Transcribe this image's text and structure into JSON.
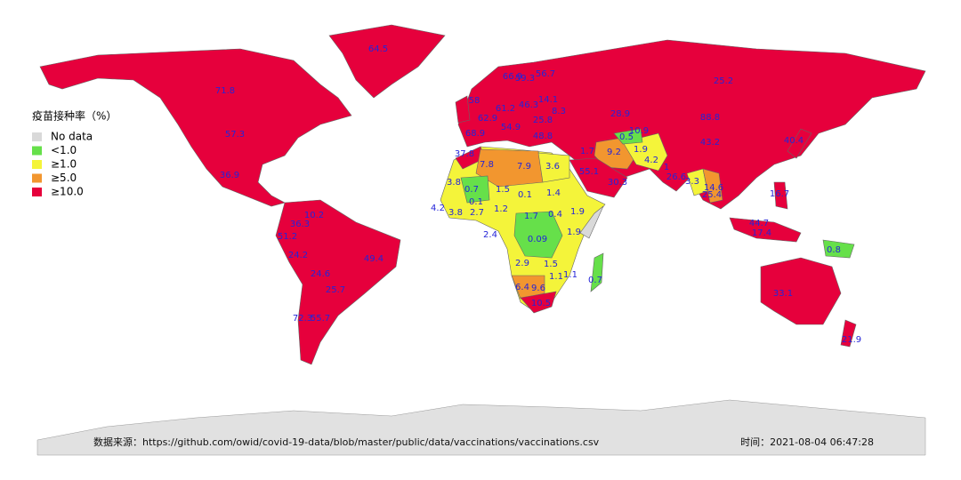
{
  "map": {
    "legend": {
      "title": "疫苗接种率（%）",
      "items": [
        {
          "label": "No data",
          "color": "#d9d9d9"
        },
        {
          "label": "<1.0",
          "color": "#66e04a"
        },
        {
          "label": "≥1.0",
          "color": "#f4f43a"
        },
        {
          "label": "≥5.0",
          "color": "#f2962f"
        },
        {
          "label": "≥10.0",
          "color": "#e6003c"
        }
      ]
    },
    "labels": [
      64.5,
      71.8,
      57.3,
      36.9,
      10.2,
      36.3,
      51.2,
      24.2,
      49.4,
      24.6,
      25.7,
      72.3,
      55.7,
      58,
      66.9,
      59.3,
      56.7,
      61.2,
      46.3,
      14.1,
      62.9,
      25.8,
      8.3,
      68.9,
      54.9,
      48.8,
      37.8,
      28.9,
      88.8,
      25.2,
      43.2,
      40.4,
      1.7,
      0.5,
      10.9,
      1.9,
      4.2,
      1,
      9.2,
      55.1,
      30.3,
      26.6,
      7.8,
      7.9,
      3.6,
      3.8,
      0.7,
      1.5,
      0.1,
      1.4,
      0.1,
      1.2,
      1.7,
      0.4,
      1.9,
      4.2,
      3.8,
      2.7,
      2.4,
      0.09,
      1.9,
      2.9,
      1.5,
      0.7,
      1.1,
      1.1,
      6.4,
      9.6,
      10.5,
      3.3,
      14.6,
      25.4,
      16.7,
      44.7,
      17.4,
      0.8,
      33.1,
      21.9
    ],
    "source": "数据来源：https://github.com/owid/covid-19-data/blob/master/public/data/vaccinations/vaccinations.csv",
    "time": "时间：2021-08-04 06:47:28"
  }
}
